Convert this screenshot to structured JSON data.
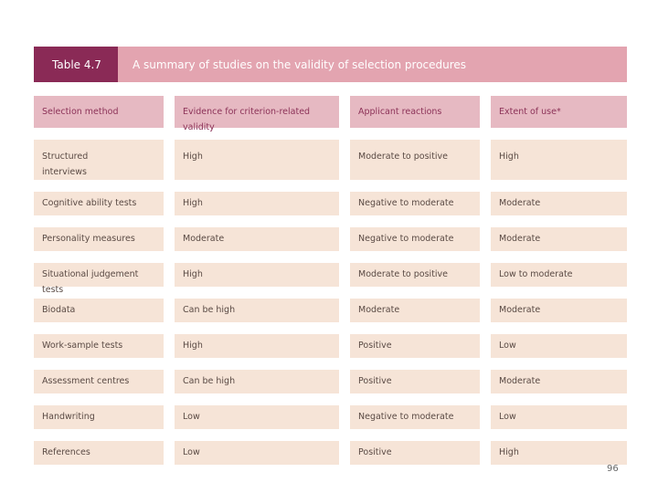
{
  "title": {
    "label": "Table 4.7",
    "text": "A summary of studies on the validity of selection procedures"
  },
  "table": {
    "headers": [
      "Selection method",
      "Evidence for criterion-related validity",
      "Applicant reactions",
      "Extent of use*"
    ],
    "rows": [
      [
        "Structured interviews",
        "High",
        "Moderate to positive",
        "High"
      ],
      [
        "Cognitive ability tests",
        "High",
        "Negative to moderate",
        "Moderate"
      ],
      [
        "Personality measures",
        "Moderate",
        "Negative to moderate",
        "Moderate"
      ],
      [
        "Situational judgement tests",
        "High",
        "Moderate to positive",
        "Low to moderate"
      ],
      [
        "Biodata",
        "Can be high",
        "Moderate",
        "Moderate"
      ],
      [
        "Work-sample tests",
        "High",
        "Positive",
        "Low"
      ],
      [
        "Assessment centres",
        "Can be high",
        "Positive",
        "Moderate"
      ],
      [
        "Handwriting",
        "Low",
        "Negative to moderate",
        "Low"
      ],
      [
        "References",
        "Low",
        "Positive",
        "High"
      ]
    ]
  },
  "page_number": "96",
  "colors": {
    "title_dark": "#8a2a56",
    "title_bar": "#e3a4b0",
    "header_cell": "#e6b9c2",
    "body_cell": "#f6e4d7",
    "header_text": "#8c3258"
  }
}
